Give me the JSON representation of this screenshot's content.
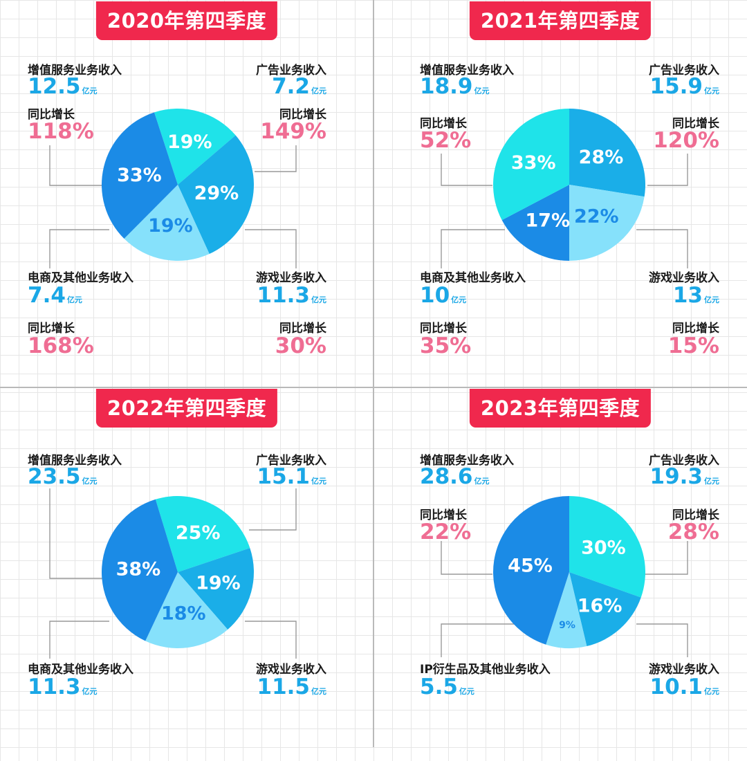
{
  "colors": {
    "title_bg": "#f0284d",
    "value_blue": "#1aa7e6",
    "growth_pink": "#ef6d93",
    "slice_dark_blue": "#1b8be6",
    "slice_cyan": "#1fe3e9",
    "slice_mid_blue": "#1aaee8",
    "slice_light_blue": "#86e1fb"
  },
  "unit": "亿元",
  "yoy_label": "同比增长",
  "chart_data": [
    {
      "type": "pie",
      "title": "2020年第四季度",
      "slices": [
        {
          "label": "增值服务业务收入",
          "value": 12.5,
          "pct_label": "33%",
          "yoy": "118%",
          "color": "#1b8be6"
        },
        {
          "label": "广告业务收入",
          "value": 7.2,
          "pct_label": "19%",
          "yoy": "149%",
          "color": "#1fe3e9"
        },
        {
          "label": "游戏业务收入",
          "value": 11.3,
          "pct_label": "29%",
          "yoy": "30%",
          "color": "#1aaee8"
        },
        {
          "label": "电商及其他业务收入",
          "value": 7.4,
          "pct_label": "19%",
          "yoy": "168%",
          "color": "#86e1fb"
        }
      ]
    },
    {
      "type": "pie",
      "title": "2021年第四季度",
      "slices": [
        {
          "label": "增值服务业务收入",
          "value": 18.9,
          "pct_label": "33%",
          "yoy": "52%",
          "color": "#1fe3e9"
        },
        {
          "label": "广告业务收入",
          "value": 15.9,
          "pct_label": "28%",
          "yoy": "120%",
          "color": "#1aaee8"
        },
        {
          "label": "游戏业务收入",
          "value": 13.0,
          "pct_label": "22%",
          "yoy": "15%",
          "color": "#86e1fb"
        },
        {
          "label": "电商及其他业务收入",
          "value": 10.0,
          "pct_label": "17%",
          "yoy": "35%",
          "color": "#1b8be6"
        }
      ]
    },
    {
      "type": "pie",
      "title": "2022年第四季度",
      "slices": [
        {
          "label": "增值服务业务收入",
          "value": 23.5,
          "pct_label": "38%",
          "color": "#1b8be6"
        },
        {
          "label": "广告业务收入",
          "value": 15.1,
          "pct_label": "25%",
          "color": "#1fe3e9"
        },
        {
          "label": "游戏业务收入",
          "value": 11.5,
          "pct_label": "19%",
          "color": "#1aaee8"
        },
        {
          "label": "电商及其他业务收入",
          "value": 11.3,
          "pct_label": "18%",
          "color": "#86e1fb"
        }
      ]
    },
    {
      "type": "pie",
      "title": "2023年第四季度",
      "slices": [
        {
          "label": "增值服务业务收入",
          "value": 28.6,
          "pct_label": "45%",
          "yoy": "22%",
          "color": "#1b8be6"
        },
        {
          "label": "广告业务收入",
          "value": 19.3,
          "pct_label": "30%",
          "yoy": "28%",
          "color": "#1fe3e9"
        },
        {
          "label": "游戏业务收入",
          "value": 10.1,
          "pct_label": "16%",
          "color": "#1aaee8"
        },
        {
          "label": "IP衍生品及其他业务收入",
          "value": 5.5,
          "pct_label": "9%",
          "color": "#86e1fb"
        }
      ]
    }
  ]
}
